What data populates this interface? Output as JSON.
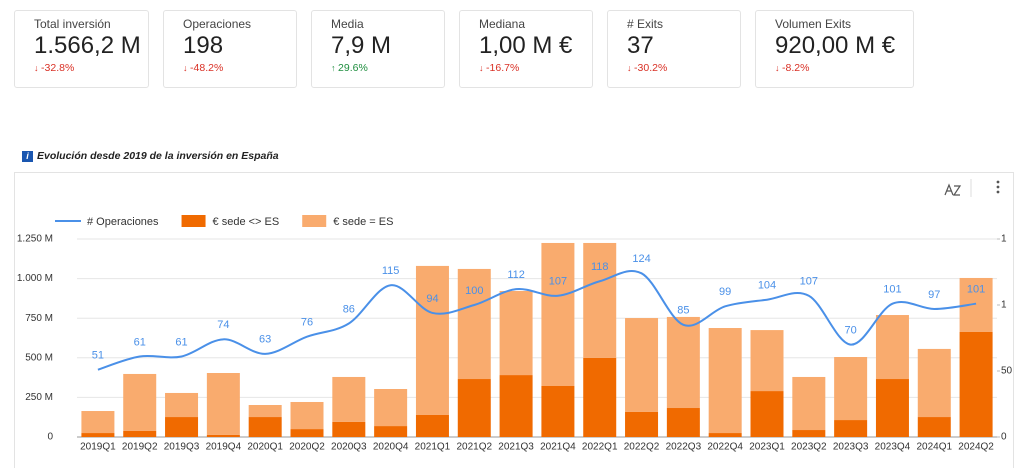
{
  "kpis": [
    {
      "label": "Total inversión",
      "value": "1.566,2 M",
      "delta": "-32.8%"
    },
    {
      "label": "Operaciones",
      "value": "198",
      "delta": "-48.2%"
    },
    {
      "label": "Media",
      "value": "7,9 M",
      "delta": "29.6%"
    },
    {
      "label": "Mediana",
      "value": "1,00 M €",
      "delta": "-16.7%"
    },
    {
      "label": "# Exits",
      "value": "37",
      "delta": "-30.2%"
    },
    {
      "label": "Volumen Exits",
      "value": "920,00 M €",
      "delta": "-8.2%"
    }
  ],
  "chart_data": {
    "type": "combo",
    "title": "Evolución desde 2019 de la inversión en España",
    "categories": [
      "2019Q1",
      "2019Q2",
      "2019Q3",
      "2019Q4",
      "2020Q1",
      "2020Q2",
      "2020Q3",
      "2020Q4",
      "2021Q1",
      "2021Q2",
      "2021Q3",
      "2021Q4",
      "2022Q1",
      "2022Q2",
      "2022Q3",
      "2022Q4",
      "2023Q1",
      "2023Q2",
      "2023Q3",
      "2023Q4",
      "2024Q1",
      "2024Q2"
    ],
    "series": [
      {
        "name": "# Operaciones",
        "type": "line",
        "axis": "y2",
        "color": "#4a90e8",
        "values": [
          51,
          61,
          61,
          74,
          63,
          76,
          86,
          115,
          94,
          100,
          112,
          107,
          118,
          124,
          85,
          99,
          104,
          107,
          70,
          101,
          97,
          101
        ]
      },
      {
        "name": "€ sede <> ES",
        "type": "bar",
        "color": "#f06a00",
        "values": [
          25,
          38,
          126,
          13,
          126,
          50,
          95,
          69,
          139,
          366,
          391,
          322,
          499,
          158,
          183,
          25,
          290,
          44,
          107,
          366,
          126,
          663
        ]
      },
      {
        "name": "€ sede = ES",
        "type": "bar",
        "color": "#f9ab6e",
        "values": [
          139,
          360,
          152,
          391,
          76,
          171,
          284,
          234,
          941,
          695,
          531,
          903,
          726,
          593,
          575,
          663,
          385,
          335,
          398,
          404,
          430,
          341
        ]
      }
    ],
    "ylim": [
      0,
      1250
    ],
    "yticks": [
      0,
      {
        "value": 250,
        "label": "250 M"
      },
      {
        "value": 500,
        "label": "500 M"
      },
      {
        "value": 750,
        "label": "750 M"
      },
      {
        "value": 1000,
        "label": "1.000 M"
      },
      {
        "value": 1250,
        "label": "1.250 M"
      }
    ],
    "y2lim": [
      0,
      150
    ],
    "y2ticks": [
      0,
      50,
      {
        "value": 100,
        "label": "1"
      },
      {
        "value": 150,
        "label": "1"
      }
    ],
    "grid": true,
    "legend": "top-left"
  }
}
